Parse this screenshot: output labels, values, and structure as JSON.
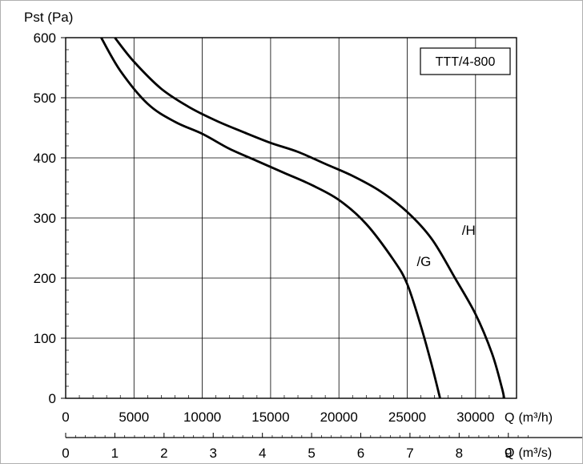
{
  "chart_data": {
    "type": "line",
    "ylabel": "Pst (Pa)",
    "xlabel": "Q",
    "xlabel_unit": "(m³/h)",
    "x2label": "Q",
    "x2label_unit": "(m³/s)",
    "box_label": "TTT/4-800",
    "xlim": [
      0,
      33000
    ],
    "ylim": [
      0,
      600
    ],
    "x_ticks": [
      0,
      5000,
      10000,
      15000,
      20000,
      25000,
      30000
    ],
    "x_tick_labels": [
      "0",
      "5000",
      "10000",
      "15000",
      "20000",
      "25000",
      "30000"
    ],
    "y_ticks": [
      0,
      100,
      200,
      300,
      400,
      500,
      600
    ],
    "y_tick_labels": [
      "0",
      "100",
      "200",
      "300",
      "400",
      "500",
      "600"
    ],
    "x2_ticks": [
      0,
      1,
      2,
      3,
      4,
      5,
      6,
      7,
      8,
      9
    ],
    "x2_tick_labels": [
      "0",
      "1",
      "2",
      "3",
      "4",
      "5",
      "6",
      "7",
      "8",
      "9"
    ],
    "grid": true,
    "series": [
      {
        "name": "/G",
        "x": [
          2600,
          4000,
          6000,
          8000,
          10000,
          12000,
          14000,
          16000,
          18000,
          20000,
          22000,
          24000,
          25000,
          26000,
          26800,
          27400
        ],
        "y": [
          600,
          545,
          490,
          460,
          440,
          415,
          395,
          375,
          355,
          330,
          290,
          230,
          190,
          120,
          55,
          0
        ]
      },
      {
        "name": "/H",
        "x": [
          3600,
          5000,
          7000,
          9000,
          11000,
          13000,
          15000,
          17000,
          19000,
          21000,
          23000,
          25000,
          26800,
          28500,
          30000,
          31200,
          31900,
          32100
        ],
        "y": [
          600,
          560,
          515,
          485,
          462,
          443,
          425,
          410,
          390,
          370,
          345,
          310,
          265,
          200,
          140,
          75,
          20,
          0
        ]
      }
    ],
    "label_positions": {
      "/G": [
        25700,
        220
      ],
      "/H": [
        29000,
        272
      ]
    }
  }
}
